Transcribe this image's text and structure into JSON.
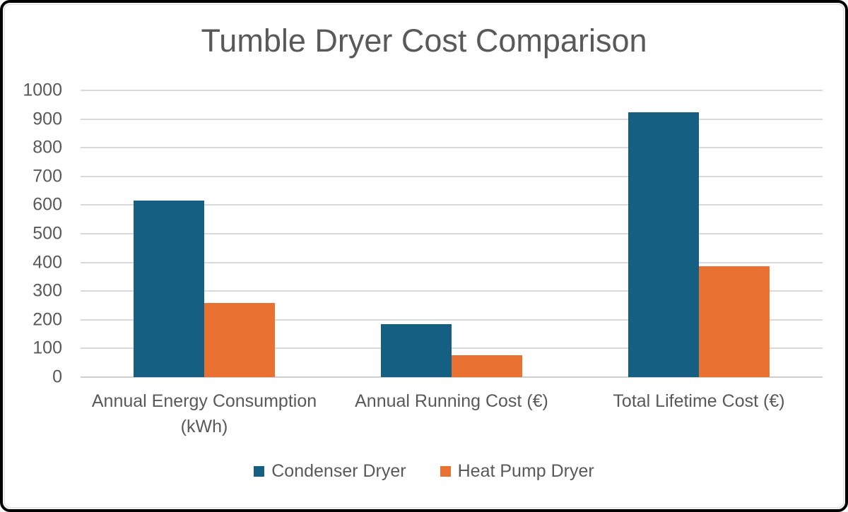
{
  "window": {
    "border_color": "#000000",
    "inner_frame_color": "#E7E7E7",
    "background": "#FFFFFF"
  },
  "text_color": "#595959",
  "gridline_color": "#D9D9D9",
  "chart_data": {
    "type": "bar",
    "title": "Tumble Dryer Cost Comparison",
    "categories": [
      "Annual Energy Consumption (kWh)",
      "Annual Running Cost (€)",
      "Total Lifetime Cost (€)"
    ],
    "series": [
      {
        "name": "Condenser Dryer",
        "color": "#156082",
        "values": [
          615,
          184.5,
          922.5
        ]
      },
      {
        "name": "Heat Pump Dryer",
        "color": "#E97132",
        "values": [
          257.5,
          77.25,
          386.25
        ]
      }
    ],
    "xlabel": "",
    "ylabel": "",
    "ylim": [
      0,
      1000
    ],
    "ytick_step": 100,
    "yticks": [
      1000,
      900,
      800,
      700,
      600,
      500,
      400,
      300,
      200,
      100,
      0
    ],
    "grid": true,
    "legend_position": "bottom"
  }
}
